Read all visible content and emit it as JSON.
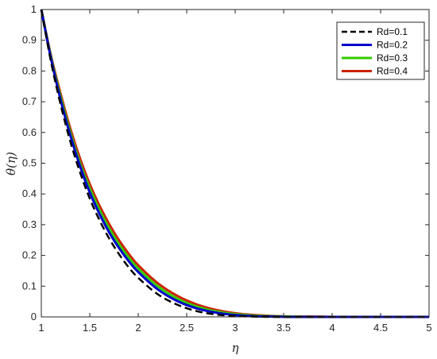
{
  "chart_data": {
    "type": "line",
    "title": "",
    "xlabel": "η",
    "ylabel": "θ(η)",
    "xlim": [
      1,
      5
    ],
    "ylim": [
      0,
      1
    ],
    "xticks": [
      "1",
      "1.5",
      "2",
      "2.5",
      "3",
      "3.5",
      "4",
      "4.5",
      "5"
    ],
    "yticks": [
      "0",
      "0.1",
      "0.2",
      "0.3",
      "0.4",
      "0.5",
      "0.6",
      "0.7",
      "0.8",
      "0.9",
      "1"
    ],
    "grid": false,
    "legend_position": "top-right",
    "x": [
      1,
      1.1,
      1.2,
      1.3,
      1.4,
      1.5,
      1.6,
      1.7,
      1.8,
      1.9,
      2,
      2.2,
      2.4,
      2.6,
      2.8,
      3,
      3.2,
      3.4,
      3.6,
      3.8,
      4,
      4.2,
      4.4,
      4.6,
      4.8,
      5
    ],
    "series": [
      {
        "name": "Rd=0.1",
        "color": "#000000",
        "style": "dashed",
        "values": [
          1.0,
          0.83,
          0.69,
          0.57,
          0.47,
          0.385,
          0.315,
          0.255,
          0.205,
          0.162,
          0.127,
          0.074,
          0.04,
          0.019,
          0.008,
          0.003,
          0.001,
          0.0,
          0.0,
          0.0,
          0.0,
          0.0,
          0.0,
          0.0,
          0.0,
          0.0
        ]
      },
      {
        "name": "Rd=0.2",
        "color": "#0000cc",
        "style": "solid",
        "values": [
          1.0,
          0.84,
          0.705,
          0.59,
          0.49,
          0.405,
          0.335,
          0.275,
          0.225,
          0.182,
          0.146,
          0.09,
          0.052,
          0.028,
          0.014,
          0.006,
          0.002,
          0.001,
          0.0,
          0.0,
          0.0,
          0.0,
          0.0,
          0.0,
          0.0,
          0.0
        ]
      },
      {
        "name": "Rd=0.3",
        "color": "#33cc00",
        "style": "solid",
        "values": [
          1.0,
          0.845,
          0.715,
          0.6,
          0.5,
          0.418,
          0.348,
          0.288,
          0.237,
          0.194,
          0.157,
          0.1,
          0.06,
          0.034,
          0.018,
          0.009,
          0.004,
          0.002,
          0.001,
          0.0,
          0.0,
          0.0,
          0.0,
          0.0,
          0.0,
          0.0
        ]
      },
      {
        "name": "Rd=0.4",
        "color": "#cc2200",
        "style": "solid",
        "values": [
          1.0,
          0.85,
          0.725,
          0.612,
          0.515,
          0.432,
          0.362,
          0.302,
          0.25,
          0.206,
          0.168,
          0.11,
          0.069,
          0.041,
          0.023,
          0.012,
          0.006,
          0.003,
          0.001,
          0.001,
          0.0,
          0.0,
          0.0,
          0.0,
          0.0,
          0.0
        ]
      }
    ]
  }
}
